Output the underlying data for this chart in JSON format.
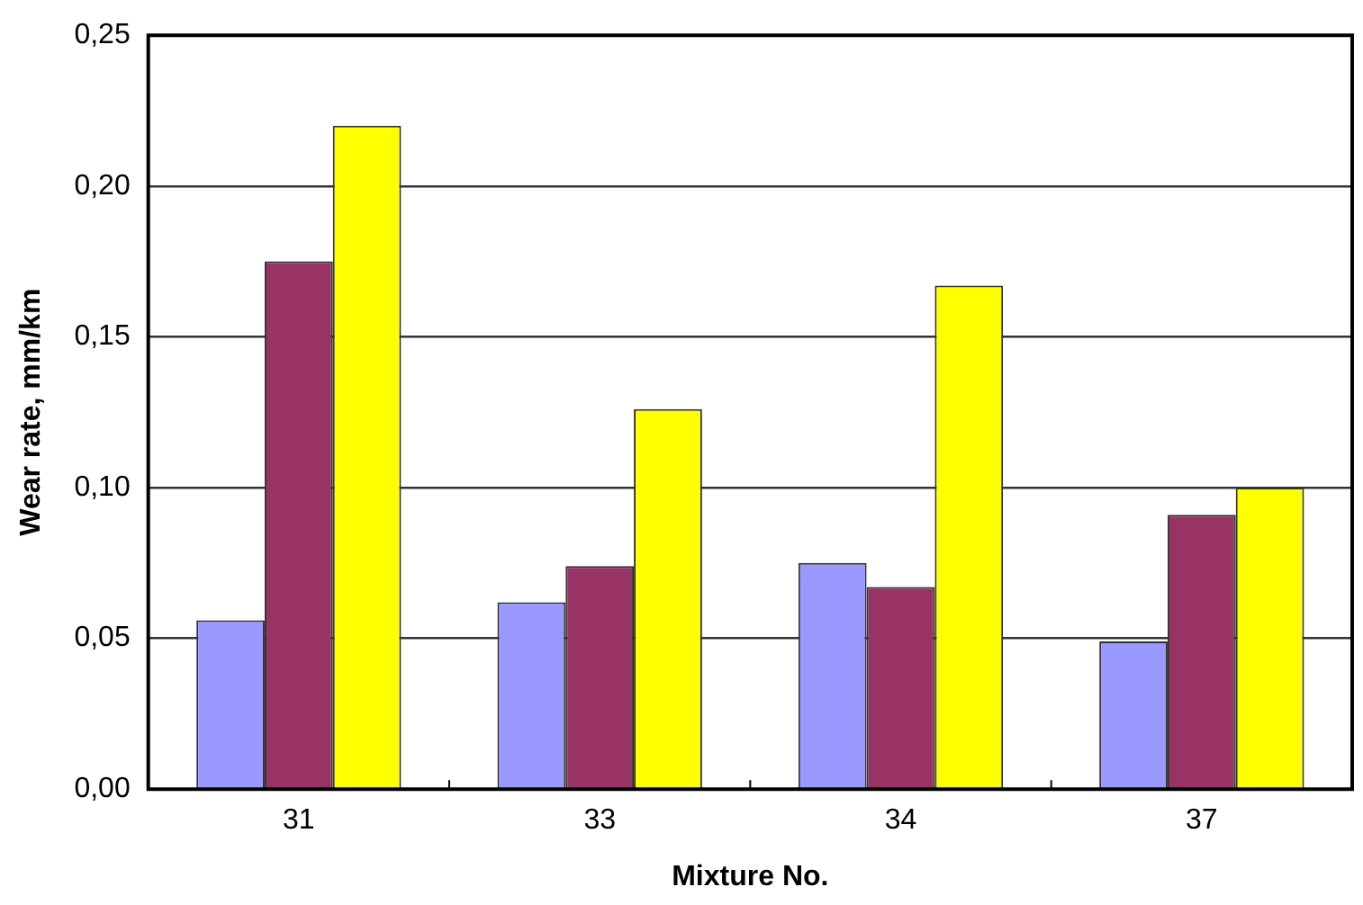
{
  "chart_data": {
    "type": "bar",
    "xlabel": "Mixture No.",
    "ylabel": "Wear rate, mm/km",
    "categories": [
      "31",
      "33",
      "34",
      "37"
    ],
    "series": [
      {
        "color": "#9999ff",
        "values": [
          0.056,
          0.062,
          0.075,
          0.049
        ]
      },
      {
        "color": "#993366",
        "values": [
          0.175,
          0.074,
          0.067,
          0.091
        ]
      },
      {
        "color": "#ffff00",
        "values": [
          0.22,
          0.126,
          0.167,
          0.1
        ]
      }
    ],
    "ylim": [
      0,
      0.25
    ],
    "yticks": [
      {
        "value": 0,
        "label": "0,00"
      },
      {
        "value": 0.05,
        "label": "0,05"
      },
      {
        "value": 0.1,
        "label": "0,10"
      },
      {
        "value": 0.15,
        "label": "0,15"
      },
      {
        "value": 0.2,
        "label": "0,20"
      },
      {
        "value": 0.25,
        "label": "0,25"
      }
    ],
    "grid": "y",
    "legend": false
  }
}
